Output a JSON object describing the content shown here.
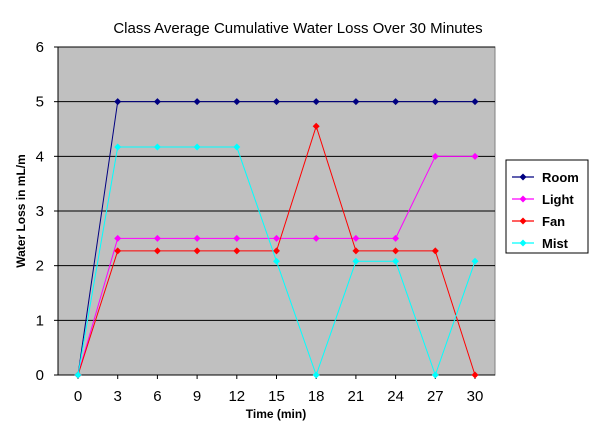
{
  "chart_data": {
    "type": "line",
    "title": "Class Average Cumulative Water Loss Over 30 Minutes",
    "xlabel": "Time (min)",
    "ylabel": "Water Loss in mL/m",
    "x": [
      0,
      3,
      6,
      9,
      12,
      15,
      18,
      21,
      24,
      27,
      30
    ],
    "xlim": [
      0,
      30
    ],
    "ylim": [
      0,
      6
    ],
    "yticks": [
      0,
      1,
      2,
      3,
      4,
      5,
      6
    ],
    "grid": true,
    "plot_background": "#c0c0c0",
    "legend_position": "right",
    "series": [
      {
        "name": "Room",
        "color": "#000080",
        "marker": "diamond",
        "values": [
          0,
          5,
          5,
          5,
          5,
          5,
          5,
          5,
          5,
          5,
          5
        ]
      },
      {
        "name": "Light",
        "color": "#ff00ff",
        "marker": "square",
        "values": [
          0,
          2.5,
          2.5,
          2.5,
          2.5,
          2.5,
          2.5,
          2.5,
          2.5,
          4,
          4
        ]
      },
      {
        "name": "Fan",
        "color": "#ff0000",
        "marker": "triangle",
        "values": [
          0,
          2.27,
          2.27,
          2.27,
          2.27,
          2.27,
          4.55,
          2.27,
          2.27,
          2.27,
          0
        ]
      },
      {
        "name": "Mist",
        "color": "#00ffff",
        "marker": "cross",
        "values": [
          0,
          4.17,
          4.17,
          4.17,
          4.17,
          2.08,
          0,
          2.08,
          2.08,
          0,
          2.08
        ]
      }
    ]
  }
}
